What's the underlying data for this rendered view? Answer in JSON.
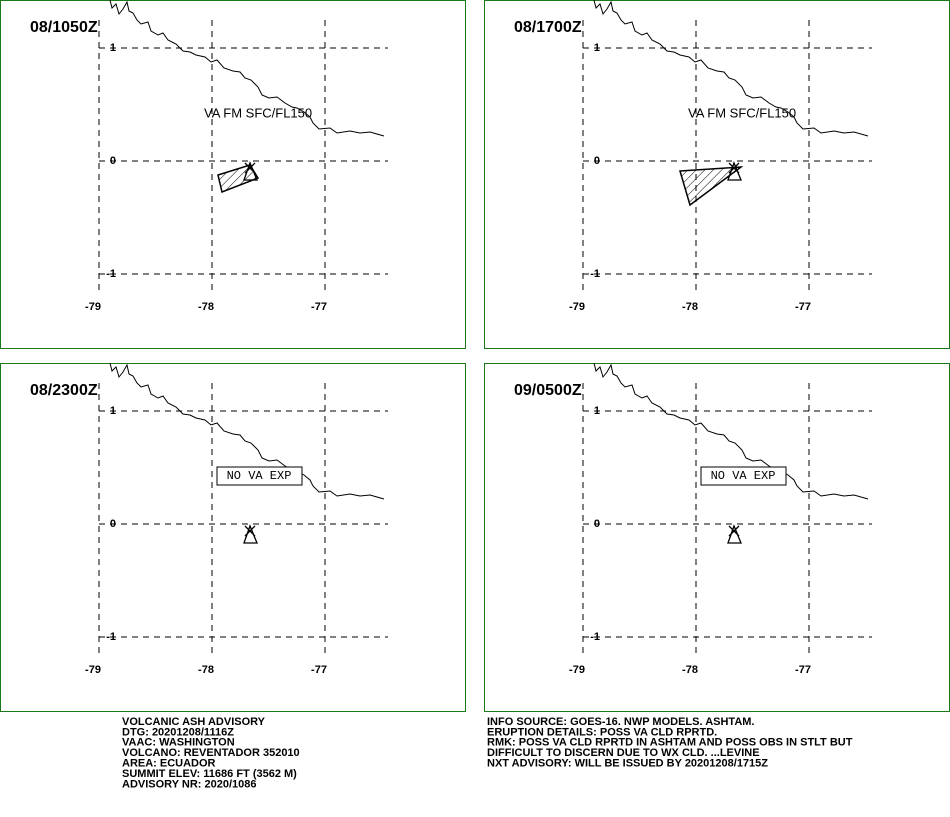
{
  "panels": [
    {
      "time": "08/1050Z",
      "annotation": "VA FM SFC/FL150"
    },
    {
      "time": "08/1700Z",
      "annotation": "VA FM SFC/FL150"
    },
    {
      "time": "08/2300Z",
      "annotation": "NO VA EXP"
    },
    {
      "time": "09/0500Z",
      "annotation": "NO VA EXP"
    }
  ],
  "lon_ticks": [
    -79,
    -78,
    -77
  ],
  "lat_ticks": [
    1,
    0,
    -1
  ],
  "footer_left": [
    "VOLCANIC ASH ADVISORY",
    "DTG: 20201208/1116Z",
    "VAAC: WASHINGTON",
    "VOLCANO: REVENTADOR 352010",
    "AREA: ECUADOR",
    "SUMMIT ELEV: 11686 FT (3562 M)",
    "ADVISORY NR: 2020/1086"
  ],
  "footer_right": [
    "INFO SOURCE: GOES-16. NWP MODELS. ASHTAM.",
    "ERUPTION DETAILS: POSS VA CLD RPRTD.",
    "RMK: POSS VA CLD RPRTD IN ASHTAM AND POSS OBS IN STLT BUT",
    "DIFFICULT TO DISCERN DUE TO WX CLD. ...LEVINE",
    "NXT ADVISORY: WILL BE ISSUED BY 20201208/1715Z"
  ]
}
